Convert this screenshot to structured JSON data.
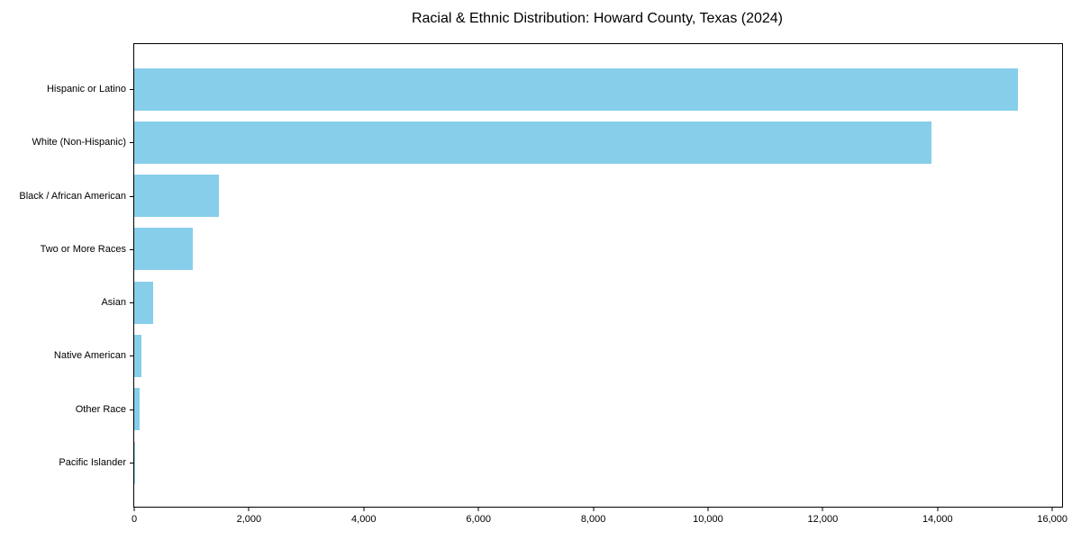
{
  "chart_data": {
    "type": "bar",
    "orientation": "horizontal",
    "title": "Racial & Ethnic Distribution: Howard County, Texas (2024)",
    "categories": [
      "Hispanic or Latino",
      "White (Non-Hispanic)",
      "Black / African American",
      "Two or More Races",
      "Asian",
      "Native American",
      "Other Race",
      "Pacific Islander"
    ],
    "values": [
      15400,
      13900,
      1470,
      1015,
      330,
      120,
      90,
      10
    ],
    "xlabel": "",
    "ylabel": "",
    "xlim": [
      0,
      16170
    ],
    "xticks": [
      0,
      2000,
      4000,
      6000,
      8000,
      10000,
      12000,
      14000,
      16000
    ],
    "xtick_labels": [
      "0",
      "2,000",
      "4,000",
      "6,000",
      "8,000",
      "10,000",
      "12,000",
      "14,000",
      "16,000"
    ],
    "grid": false,
    "legend": null,
    "bar_color": "#87CEEB",
    "spine_color": "#000000",
    "text_color": "#000000",
    "background_color": "#FFFFFF"
  }
}
